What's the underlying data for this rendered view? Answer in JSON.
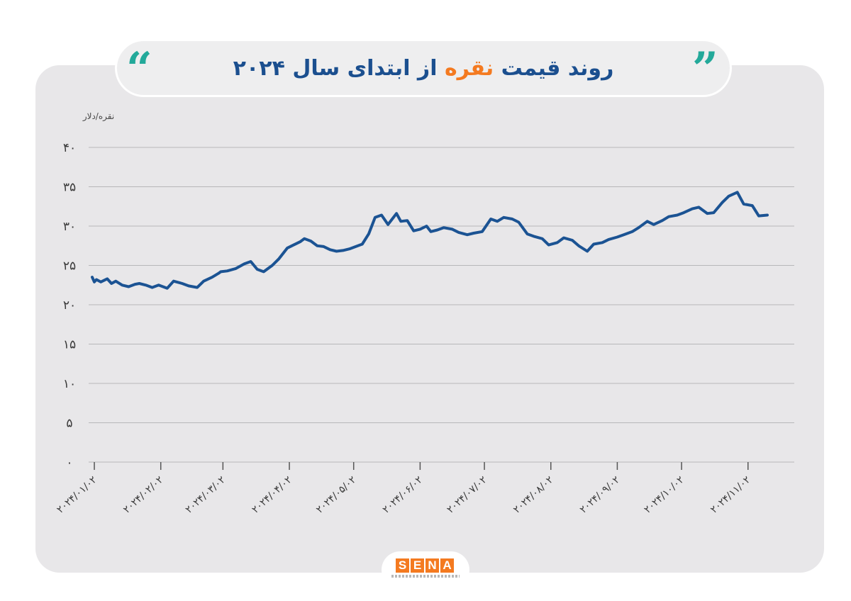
{
  "header": {
    "title_part1": "روند قیمت",
    "title_accent": "نقره",
    "title_part2": "از ابتدای سال ۲۰۲۴",
    "quote_left": "“",
    "quote_right": "”"
  },
  "colors": {
    "line": "#1b5393",
    "accent": "#f47a20",
    "title": "#1b4f8f",
    "quote": "#23a99a",
    "grid": "#b7b7b9"
  },
  "chart_data": {
    "type": "line",
    "title": "روند قیمت نقره از ابتدای سال ۲۰۲۴",
    "ylabel": "نقره/دلار",
    "ylim": [
      0,
      40
    ],
    "yticks": [
      0,
      5,
      10,
      15,
      20,
      25,
      30,
      35,
      40
    ],
    "ytick_labels": [
      "۰",
      "۵",
      "۱۰",
      "۱۵",
      "۲۰",
      "۲۵",
      "۳۰",
      "۳۵",
      "۴۰"
    ],
    "grid": true,
    "xlim": [
      "2024-01-01",
      "2024-11-12"
    ],
    "xticks": [
      "2024-01-02",
      "2024-02-02",
      "2024-03-02",
      "2024-04-02",
      "2024-05-02",
      "2024-06-02",
      "2024-07-02",
      "2024-08-02",
      "2024-09-02",
      "2024-10-02",
      "2024-11-02"
    ],
    "xtick_labels": [
      "۲۰۲۴/۰۱/۰۲",
      "۲۰۲۴/۰۲/۰۲",
      "۲۰۲۴/۰۳/۰۲",
      "۲۰۲۴/۰۴/۰۲",
      "۲۰۲۴/۰۵/۰۲",
      "۲۰۲۴/۰۶/۰۲",
      "۲۰۲۴/۰۷/۰۲",
      "۲۰۲۴/۰۸/۰۲",
      "۲۰۲۴/۰۹/۰۲",
      "۲۰۲۴/۱۰/۰۲",
      "۲۰۲۴/۱۱/۰۲"
    ],
    "series": [
      {
        "x": [
          "2024-01-01",
          "2024-01-02",
          "2024-01-03",
          "2024-01-05",
          "2024-01-08",
          "2024-01-10",
          "2024-01-12",
          "2024-01-15",
          "2024-01-18",
          "2024-01-21",
          "2024-01-23",
          "2024-01-26",
          "2024-01-29",
          "2024-02-01",
          "2024-02-05",
          "2024-02-08",
          "2024-02-12",
          "2024-02-15",
          "2024-02-19",
          "2024-02-22",
          "2024-02-26",
          "2024-02-29",
          "2024-03-01",
          "2024-03-04",
          "2024-03-08",
          "2024-03-12",
          "2024-03-15",
          "2024-03-18",
          "2024-03-21",
          "2024-03-25",
          "2024-03-28",
          "2024-04-01",
          "2024-04-04",
          "2024-04-07",
          "2024-04-09",
          "2024-04-12",
          "2024-04-15",
          "2024-04-18",
          "2024-04-21",
          "2024-04-24",
          "2024-04-27",
          "2024-04-30",
          "2024-05-02",
          "2024-05-06",
          "2024-05-09",
          "2024-05-12",
          "2024-05-15",
          "2024-05-18",
          "2024-05-20",
          "2024-05-22",
          "2024-05-24",
          "2024-05-27",
          "2024-05-30",
          "2024-06-02",
          "2024-06-05",
          "2024-06-07",
          "2024-06-10",
          "2024-06-13",
          "2024-06-17",
          "2024-06-20",
          "2024-06-24",
          "2024-06-27",
          "2024-07-01",
          "2024-07-05",
          "2024-07-08",
          "2024-07-11",
          "2024-07-15",
          "2024-07-18",
          "2024-07-22",
          "2024-07-25",
          "2024-07-29",
          "2024-08-01",
          "2024-08-05",
          "2024-08-08",
          "2024-08-12",
          "2024-08-15",
          "2024-08-19",
          "2024-08-22",
          "2024-08-26",
          "2024-08-29",
          "2024-09-02",
          "2024-09-05",
          "2024-09-09",
          "2024-09-12",
          "2024-09-16",
          "2024-09-19",
          "2024-09-23",
          "2024-09-26",
          "2024-09-30",
          "2024-10-03",
          "2024-10-07",
          "2024-10-10",
          "2024-10-14",
          "2024-10-17",
          "2024-10-21",
          "2024-10-24",
          "2024-10-28",
          "2024-10-31",
          "2024-11-04",
          "2024-11-07",
          "2024-11-11"
        ],
        "y": [
          23.5,
          22.9,
          23.2,
          22.9,
          23.3,
          22.7,
          23.0,
          22.5,
          22.3,
          22.6,
          22.7,
          22.5,
          22.2,
          22.5,
          22.1,
          23.0,
          22.7,
          22.4,
          22.2,
          23.0,
          23.5,
          24.0,
          24.2,
          24.3,
          24.6,
          25.2,
          25.5,
          24.5,
          24.2,
          25.0,
          25.8,
          27.2,
          27.6,
          28.0,
          28.4,
          28.1,
          27.5,
          27.4,
          27.0,
          26.8,
          26.9,
          27.1,
          27.3,
          27.7,
          29.0,
          31.1,
          31.4,
          30.2,
          30.9,
          31.6,
          30.6,
          30.7,
          29.4,
          29.6,
          30.0,
          29.3,
          29.5,
          29.8,
          29.6,
          29.2,
          28.9,
          29.1,
          29.3,
          30.9,
          30.6,
          31.1,
          30.9,
          30.5,
          29.0,
          28.7,
          28.4,
          27.6,
          27.9,
          28.5,
          28.2,
          27.5,
          26.8,
          27.7,
          27.9,
          28.3,
          28.6,
          28.9,
          29.3,
          29.8,
          30.6,
          30.2,
          30.7,
          31.2,
          31.4,
          31.7,
          32.2,
          32.4,
          31.6,
          31.7,
          33.0,
          33.8,
          34.3,
          32.8,
          32.6,
          31.3,
          31.4
        ]
      }
    ]
  }
}
